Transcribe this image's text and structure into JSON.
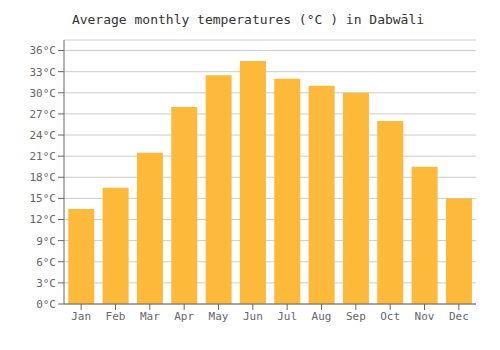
{
  "chart_data": {
    "type": "bar",
    "title": "Average monthly temperatures (°C ) in Dabwāli",
    "categories": [
      "Jan",
      "Feb",
      "Mar",
      "Apr",
      "May",
      "Jun",
      "Jul",
      "Aug",
      "Sep",
      "Oct",
      "Nov",
      "Dec"
    ],
    "values": [
      13.5,
      16.5,
      21.5,
      28.0,
      32.5,
      34.5,
      32.0,
      31.0,
      30.0,
      26.0,
      19.5,
      15.0
    ],
    "color": "#FDB93A",
    "ylim": [
      0,
      37.5
    ],
    "yticks": [
      {
        "value": 0,
        "label": "0°C"
      },
      {
        "value": 3,
        "label": "3°C"
      },
      {
        "value": 6,
        "label": "6°C"
      },
      {
        "value": 9,
        "label": "9°C"
      },
      {
        "value": 12,
        "label": "12°C"
      },
      {
        "value": 15,
        "label": "15°C"
      },
      {
        "value": 18,
        "label": "18°C"
      },
      {
        "value": 21,
        "label": "21°C"
      },
      {
        "value": 24,
        "label": "24°C"
      },
      {
        "value": 27,
        "label": "27°C"
      },
      {
        "value": 30,
        "label": "30°C"
      },
      {
        "value": 33,
        "label": "33°C"
      },
      {
        "value": 36,
        "label": "36°C"
      }
    ],
    "grid": true
  }
}
